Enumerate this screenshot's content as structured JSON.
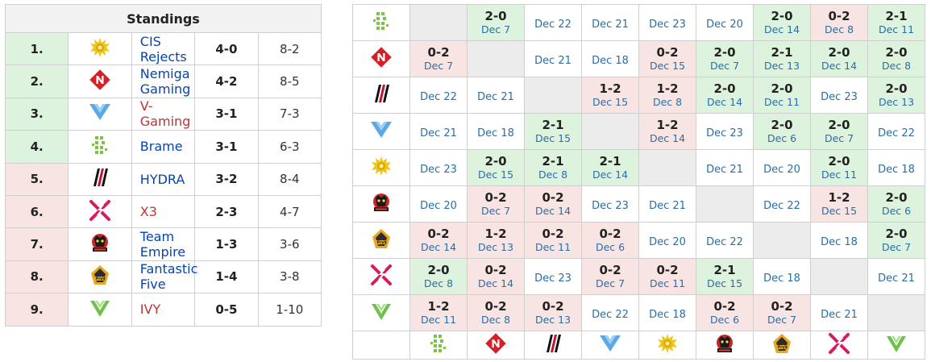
{
  "standings": {
    "title": "Standings",
    "rows": [
      {
        "rank": "1.",
        "team": "CIS Rejects",
        "series": "4-0",
        "games": "8-2",
        "logo": "cis-rejects-logo",
        "zone": "up",
        "link": "blue"
      },
      {
        "rank": "2.",
        "team": "Nemiga Gaming",
        "series": "4-2",
        "games": "8-5",
        "logo": "nemiga-logo",
        "zone": "up",
        "link": "blue"
      },
      {
        "rank": "3.",
        "team": "V-Gaming",
        "series": "3-1",
        "games": "7-3",
        "logo": "v-gaming-logo",
        "zone": "up",
        "link": "red"
      },
      {
        "rank": "4.",
        "team": "Brame",
        "series": "3-1",
        "games": "6-3",
        "logo": "brame-logo",
        "zone": "up",
        "link": "blue"
      },
      {
        "rank": "5.",
        "team": "HYDRA",
        "series": "3-2",
        "games": "8-4",
        "logo": "hydra-logo",
        "zone": "down",
        "link": "blue"
      },
      {
        "rank": "6.",
        "team": "X3",
        "series": "2-3",
        "games": "4-7",
        "logo": "x3-logo",
        "zone": "down",
        "link": "red"
      },
      {
        "rank": "7.",
        "team": "Team Empire",
        "series": "1-3",
        "games": "3-6",
        "logo": "team-empire-logo",
        "zone": "down",
        "link": "blue"
      },
      {
        "rank": "8.",
        "team": "Fantastic Five",
        "series": "1-4",
        "games": "3-8",
        "logo": "fantastic-five-logo",
        "zone": "down",
        "link": "blue"
      },
      {
        "rank": "9.",
        "team": "IVY",
        "series": "0-5",
        "games": "1-10",
        "logo": "ivy-logo",
        "zone": "down",
        "link": "red"
      }
    ]
  },
  "crosstable": {
    "row_logos": [
      "brame-logo",
      "nemiga-logo",
      "hydra-logo",
      "v-gaming-logo",
      "cis-rejects-logo",
      "team-empire-logo",
      "fantastic-five-logo",
      "x3-logo",
      "ivy-logo"
    ],
    "col_logos": [
      "brame-logo",
      "nemiga-logo",
      "hydra-logo",
      "v-gaming-logo",
      "cis-rejects-logo",
      "team-empire-logo",
      "fantastic-five-logo",
      "x3-logo",
      "ivy-logo"
    ],
    "rows": [
      [
        {
          "t": "self"
        },
        {
          "t": "win",
          "s": "2-0",
          "d": "Dec 7"
        },
        {
          "t": "pending",
          "d": "Dec 22"
        },
        {
          "t": "pending",
          "d": "Dec 21"
        },
        {
          "t": "pending",
          "d": "Dec 23"
        },
        {
          "t": "pending",
          "d": "Dec 20"
        },
        {
          "t": "win",
          "s": "2-0",
          "d": "Dec 14"
        },
        {
          "t": "loss",
          "s": "0-2",
          "d": "Dec 8"
        },
        {
          "t": "win",
          "s": "2-1",
          "d": "Dec 11"
        }
      ],
      [
        {
          "t": "loss",
          "s": "0-2",
          "d": "Dec 7"
        },
        {
          "t": "self"
        },
        {
          "t": "pending",
          "d": "Dec 21"
        },
        {
          "t": "pending",
          "d": "Dec 18"
        },
        {
          "t": "loss",
          "s": "0-2",
          "d": "Dec 15"
        },
        {
          "t": "win",
          "s": "2-0",
          "d": "Dec 7"
        },
        {
          "t": "win",
          "s": "2-1",
          "d": "Dec 13"
        },
        {
          "t": "win",
          "s": "2-0",
          "d": "Dec 14"
        },
        {
          "t": "win",
          "s": "2-0",
          "d": "Dec 8"
        }
      ],
      [
        {
          "t": "pending",
          "d": "Dec 22"
        },
        {
          "t": "pending",
          "d": "Dec 21"
        },
        {
          "t": "self"
        },
        {
          "t": "loss",
          "s": "1-2",
          "d": "Dec 15"
        },
        {
          "t": "loss",
          "s": "1-2",
          "d": "Dec 8"
        },
        {
          "t": "win",
          "s": "2-0",
          "d": "Dec 14"
        },
        {
          "t": "win",
          "s": "2-0",
          "d": "Dec 11"
        },
        {
          "t": "pending",
          "d": "Dec 23"
        },
        {
          "t": "win",
          "s": "2-0",
          "d": "Dec 13"
        }
      ],
      [
        {
          "t": "pending",
          "d": "Dec 21"
        },
        {
          "t": "pending",
          "d": "Dec 18"
        },
        {
          "t": "win",
          "s": "2-1",
          "d": "Dec 15"
        },
        {
          "t": "self"
        },
        {
          "t": "loss",
          "s": "1-2",
          "d": "Dec 14"
        },
        {
          "t": "pending",
          "d": "Dec 23"
        },
        {
          "t": "win",
          "s": "2-0",
          "d": "Dec 6"
        },
        {
          "t": "win",
          "s": "2-0",
          "d": "Dec 7"
        },
        {
          "t": "pending",
          "d": "Dec 22"
        }
      ],
      [
        {
          "t": "pending",
          "d": "Dec 23"
        },
        {
          "t": "win",
          "s": "2-0",
          "d": "Dec 15"
        },
        {
          "t": "win",
          "s": "2-1",
          "d": "Dec 8"
        },
        {
          "t": "win",
          "s": "2-1",
          "d": "Dec 14"
        },
        {
          "t": "self"
        },
        {
          "t": "pending",
          "d": "Dec 21"
        },
        {
          "t": "pending",
          "d": "Dec 20"
        },
        {
          "t": "win",
          "s": "2-0",
          "d": "Dec 11"
        },
        {
          "t": "pending",
          "d": "Dec 18"
        }
      ],
      [
        {
          "t": "pending",
          "d": "Dec 20"
        },
        {
          "t": "loss",
          "s": "0-2",
          "d": "Dec 7"
        },
        {
          "t": "loss",
          "s": "0-2",
          "d": "Dec 14"
        },
        {
          "t": "pending",
          "d": "Dec 23"
        },
        {
          "t": "pending",
          "d": "Dec 21"
        },
        {
          "t": "self"
        },
        {
          "t": "pending",
          "d": "Dec 22"
        },
        {
          "t": "loss",
          "s": "1-2",
          "d": "Dec 15"
        },
        {
          "t": "win",
          "s": "2-0",
          "d": "Dec 6"
        }
      ],
      [
        {
          "t": "loss",
          "s": "0-2",
          "d": "Dec 14"
        },
        {
          "t": "loss",
          "s": "1-2",
          "d": "Dec 13"
        },
        {
          "t": "loss",
          "s": "0-2",
          "d": "Dec 11"
        },
        {
          "t": "loss",
          "s": "0-2",
          "d": "Dec 6"
        },
        {
          "t": "pending",
          "d": "Dec 20"
        },
        {
          "t": "pending",
          "d": "Dec 22"
        },
        {
          "t": "self"
        },
        {
          "t": "pending",
          "d": "Dec 18"
        },
        {
          "t": "win",
          "s": "2-0",
          "d": "Dec 7"
        }
      ],
      [
        {
          "t": "win",
          "s": "2-0",
          "d": "Dec 8"
        },
        {
          "t": "loss",
          "s": "0-2",
          "d": "Dec 14"
        },
        {
          "t": "pending",
          "d": "Dec 23"
        },
        {
          "t": "loss",
          "s": "0-2",
          "d": "Dec 7"
        },
        {
          "t": "loss",
          "s": "0-2",
          "d": "Dec 11"
        },
        {
          "t": "win",
          "s": "2-1",
          "d": "Dec 15"
        },
        {
          "t": "pending",
          "d": "Dec 18"
        },
        {
          "t": "self"
        },
        {
          "t": "pending",
          "d": "Dec 21"
        }
      ],
      [
        {
          "t": "loss",
          "s": "1-2",
          "d": "Dec 11"
        },
        {
          "t": "loss",
          "s": "0-2",
          "d": "Dec 8"
        },
        {
          "t": "loss",
          "s": "0-2",
          "d": "Dec 13"
        },
        {
          "t": "pending",
          "d": "Dec 22"
        },
        {
          "t": "pending",
          "d": "Dec 18"
        },
        {
          "t": "loss",
          "s": "0-2",
          "d": "Dec 6"
        },
        {
          "t": "loss",
          "s": "0-2",
          "d": "Dec 7"
        },
        {
          "t": "pending",
          "d": "Dec 21"
        },
        {
          "t": "self"
        }
      ]
    ]
  },
  "colors": {
    "win": "#def3de",
    "loss": "#f9e4e4",
    "self": "#ececec",
    "link_blue": "#0645ad",
    "link_red": "#ba3535",
    "date": "#2b6ea3"
  }
}
